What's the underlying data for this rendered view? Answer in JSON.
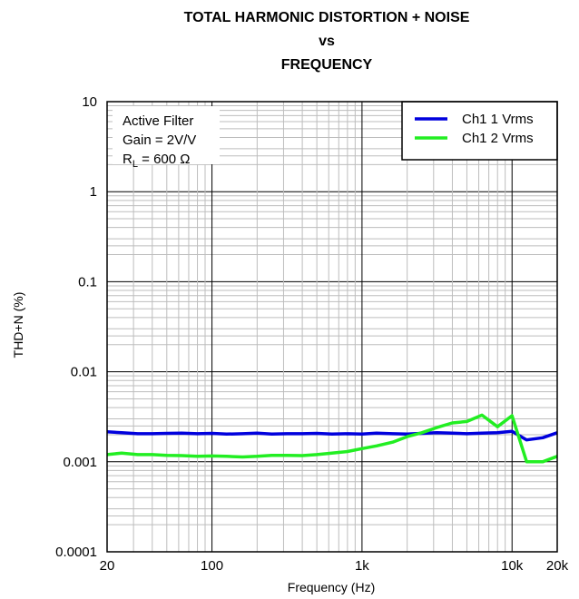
{
  "chart_data": {
    "type": "line",
    "title_lines": [
      "TOTAL HARMONIC DISTORTION + NOISE",
      "vs",
      "FREQUENCY"
    ],
    "xlabel": "Frequency (Hz)",
    "ylabel": "THD+N (%)",
    "xscale": "log",
    "yscale": "log",
    "xlim": [
      20,
      20000
    ],
    "ylim": [
      0.0001,
      10
    ],
    "grid": true,
    "legend_position": "top-right",
    "xticks": [
      {
        "value": 20,
        "label": "20"
      },
      {
        "value": 100,
        "label": "100"
      },
      {
        "value": 1000,
        "label": "1k"
      },
      {
        "value": 10000,
        "label": "10k"
      },
      {
        "value": 20000,
        "label": "20k"
      }
    ],
    "yticks": [
      {
        "value": 10,
        "label": "10"
      },
      {
        "value": 1,
        "label": "1"
      },
      {
        "value": 0.1,
        "label": "0.1"
      },
      {
        "value": 0.01,
        "label": "0.01"
      },
      {
        "value": 0.001,
        "label": "0.001"
      },
      {
        "value": 0.0001,
        "label": "0.0001"
      }
    ],
    "annotation": {
      "line1": "Active Filter",
      "line2": "Gain = 2V/V",
      "line3_prefix": "R",
      "line3_sub": "L",
      "line3_suffix": " = 600 Ω"
    },
    "series": [
      {
        "name": "Ch1 1 Vrms",
        "color": "#0000dd",
        "points": [
          [
            20,
            0.00215
          ],
          [
            25,
            0.0021
          ],
          [
            32,
            0.00205
          ],
          [
            40,
            0.00205
          ],
          [
            50,
            0.00207
          ],
          [
            63,
            0.00208
          ],
          [
            80,
            0.00205
          ],
          [
            100,
            0.00207
          ],
          [
            125,
            0.00203
          ],
          [
            160,
            0.00205
          ],
          [
            200,
            0.00208
          ],
          [
            250,
            0.00203
          ],
          [
            315,
            0.00205
          ],
          [
            400,
            0.00205
          ],
          [
            500,
            0.00207
          ],
          [
            630,
            0.00203
          ],
          [
            800,
            0.00205
          ],
          [
            1000,
            0.00203
          ],
          [
            1250,
            0.00208
          ],
          [
            1600,
            0.00205
          ],
          [
            2000,
            0.00203
          ],
          [
            2500,
            0.00207
          ],
          [
            3150,
            0.0021
          ],
          [
            4000,
            0.00208
          ],
          [
            5000,
            0.00205
          ],
          [
            6300,
            0.00208
          ],
          [
            8000,
            0.0021
          ],
          [
            10000,
            0.00218
          ],
          [
            12500,
            0.00175
          ],
          [
            16000,
            0.00185
          ],
          [
            20000,
            0.0021
          ]
        ]
      },
      {
        "name": "Ch1 2 Vrms",
        "color": "#22ee22",
        "points": [
          [
            20,
            0.0012
          ],
          [
            25,
            0.00125
          ],
          [
            32,
            0.0012
          ],
          [
            40,
            0.0012
          ],
          [
            50,
            0.00118
          ],
          [
            63,
            0.00117
          ],
          [
            80,
            0.00115
          ],
          [
            100,
            0.00116
          ],
          [
            125,
            0.00115
          ],
          [
            160,
            0.00113
          ],
          [
            200,
            0.00115
          ],
          [
            250,
            0.00118
          ],
          [
            315,
            0.00118
          ],
          [
            400,
            0.00117
          ],
          [
            500,
            0.0012
          ],
          [
            630,
            0.00125
          ],
          [
            800,
            0.0013
          ],
          [
            1000,
            0.0014
          ],
          [
            1250,
            0.0015
          ],
          [
            1600,
            0.00165
          ],
          [
            2000,
            0.0019
          ],
          [
            2500,
            0.0021
          ],
          [
            3150,
            0.0024
          ],
          [
            4000,
            0.0027
          ],
          [
            5000,
            0.0028
          ],
          [
            6300,
            0.0033
          ],
          [
            8000,
            0.00245
          ],
          [
            10000,
            0.00325
          ],
          [
            12500,
            0.001
          ],
          [
            16000,
            0.001
          ],
          [
            20000,
            0.00115
          ]
        ]
      }
    ]
  }
}
